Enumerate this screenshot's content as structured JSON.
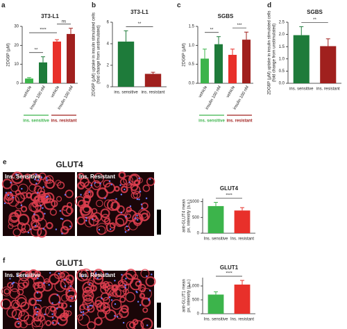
{
  "chart_data": [
    {
      "type": "bar",
      "panel": "a",
      "title": "3T3-L1",
      "ylabel": [
        "2DG6P (µM)"
      ],
      "categories": [
        "vehicle",
        "insulin 100 nM",
        "vehicle",
        "insulin 100 nM"
      ],
      "values": [
        2.5,
        11,
        22,
        26
      ],
      "errors": [
        0.5,
        3,
        1,
        3
      ],
      "colors": [
        "#3cb44b",
        "#1e7b3a",
        "#e8302a",
        "#a0201e"
      ],
      "ylim": [
        0,
        30
      ],
      "yticks": [
        0,
        10,
        20,
        30
      ],
      "annotations": [
        "**",
        "****",
        "ns"
      ],
      "groups": [
        {
          "name": "ins. sensitive",
          "color": "#3cb44b"
        },
        {
          "name": "ins. resistant",
          "color": "#a0201e"
        }
      ]
    },
    {
      "type": "bar",
      "panel": "b",
      "title": "3T3-L1",
      "ylabel": [
        "2DG6P (µM) uptake in insulin stimulated cells",
        "(fold change from unstimulated)"
      ],
      "categories": [
        "ins. sensitive",
        "ins. resistant"
      ],
      "values": [
        4.2,
        1.2
      ],
      "errors": [
        1.0,
        0.15
      ],
      "colors": [
        "#1e7b3a",
        "#a0201e"
      ],
      "ylim": [
        0,
        6
      ],
      "yticks": [
        0,
        2,
        4,
        6
      ],
      "annotations": [
        "**"
      ]
    },
    {
      "type": "bar",
      "panel": "c",
      "title": "SGBS",
      "ylabel": [
        "2DG6P (µM)"
      ],
      "categories": [
        "vehicle",
        "insulin 100 nM",
        "vehicle",
        "insulin 100 nM"
      ],
      "values": [
        0.65,
        1.03,
        0.75,
        1.15
      ],
      "errors": [
        0.25,
        0.2,
        0.15,
        0.2
      ],
      "colors": [
        "#3cb44b",
        "#1e7b3a",
        "#e8302a",
        "#a0201e"
      ],
      "ylim": [
        0,
        1.5
      ],
      "yticks": [
        {
          "value": 0,
          "label": "0.0"
        },
        0.5,
        {
          "value": 1,
          "label": "1.0"
        },
        1.5
      ],
      "annotations": [
        "**",
        "***"
      ],
      "groups": [
        {
          "name": "ins. sensitive",
          "color": "#3cb44b"
        },
        {
          "name": "ins. resistant",
          "color": "#a0201e"
        }
      ]
    },
    {
      "type": "bar",
      "panel": "d",
      "title": "SGBS",
      "ylabel": [
        "2DG6P (µM) uptake in insulin stimulated cells",
        "(fold change from unstimulated)"
      ],
      "categories": [
        "ins. sensitive",
        "ins. resistant"
      ],
      "values": [
        1.97,
        1.52
      ],
      "errors": [
        0.35,
        0.3
      ],
      "colors": [
        "#1e7b3a",
        "#a0201e"
      ],
      "ylim": [
        0,
        2.5
      ],
      "yticks": [
        {
          "value": 0,
          "label": "0.0"
        },
        0.5,
        {
          "value": 1,
          "label": "1.0"
        },
        1.5,
        {
          "value": 2,
          "label": "2.0"
        },
        2.5
      ],
      "annotations": [
        "**"
      ]
    },
    {
      "type": "bar",
      "title": "GLUT4",
      "ylabel": [
        "anti-GLUT4 mean",
        "px. intensity (a.u.)"
      ],
      "categories": [
        "Ins. sensitive",
        "Ins. resistant"
      ],
      "values": [
        860,
        720
      ],
      "errors": [
        120,
        90
      ],
      "colors": [
        "#3cb44b",
        "#e8302a"
      ],
      "ylim": [
        0,
        1100
      ],
      "yticks": [
        0,
        500,
        1000
      ],
      "annotations": [
        "****"
      ]
    },
    {
      "type": "bar",
      "title": "GLUT1",
      "ylabel": [
        "anti-GLUT1 mean",
        "px. intensity (a.u.)"
      ],
      "categories": [
        "Ins. sensitive",
        "Ins. resistant"
      ],
      "values": [
        690,
        1050
      ],
      "errors": [
        100,
        150
      ],
      "colors": [
        "#3cb44b",
        "#e8302a"
      ],
      "ylim": [
        0,
        1300
      ],
      "yticks": [
        0,
        500,
        {
          "value": 1000,
          "label": "1,000"
        }
      ],
      "annotations": [
        "****"
      ]
    }
  ],
  "images": [
    {
      "panel": "e",
      "title": "GLUT4",
      "labels": [
        "Ins. Sensitive",
        "Ins. Resistant"
      ]
    },
    {
      "panel": "f",
      "title": "GLUT1",
      "labels": [
        "Ins. Sensitive",
        "Ins. Resistant"
      ]
    }
  ]
}
